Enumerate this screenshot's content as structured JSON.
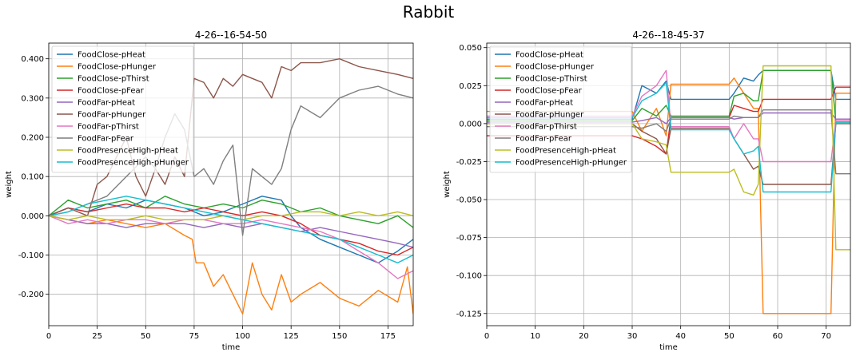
{
  "figure_title": "Rabbit",
  "colors": {
    "FoodClose-pHeat": "#1f77b4",
    "FoodClose-pHunger": "#ff7f0e",
    "FoodClose-pThirst": "#2ca02c",
    "FoodClose-pFear": "#d62728",
    "FoodFar-pHeat": "#9467bd",
    "FoodFar-pHunger": "#8c564b",
    "FoodFar-pThirst": "#e377c2",
    "FoodFar-pFear": "#7f7f7f",
    "FoodPresenceHigh-pHeat": "#bcbd22",
    "FoodPresenceHigh-pHunger": "#17becf"
  },
  "chart_data": [
    {
      "type": "line",
      "title": "4-26--16-54-50",
      "xlabel": "time",
      "ylabel": "weight",
      "xlim": [
        0,
        188
      ],
      "ylim": [
        -0.28,
        0.44
      ],
      "xticks": [
        0,
        25,
        50,
        75,
        100,
        125,
        150,
        175
      ],
      "xtick_labels": [
        "0",
        "25",
        "50",
        "75",
        "100",
        "125",
        "150",
        "175"
      ],
      "yticks": [
        -0.2,
        -0.1,
        0.0,
        0.1,
        0.2,
        0.3,
        0.4
      ],
      "ytick_labels": [
        "-0.200",
        "-0.100",
        "0.000",
        "0.100",
        "0.200",
        "0.300",
        "0.400"
      ],
      "grid": true,
      "legend": "upper-left",
      "series": [
        {
          "name": "FoodClose-pHeat",
          "x": [
            0,
            10,
            20,
            30,
            40,
            50,
            60,
            70,
            75,
            80,
            90,
            100,
            110,
            120,
            125,
            130,
            140,
            150,
            160,
            170,
            180,
            188
          ],
          "values": [
            0,
            0.02,
            0.01,
            0.03,
            0.02,
            0.04,
            0.03,
            0.02,
            0.01,
            0.0,
            0.01,
            0.03,
            0.05,
            0.04,
            0.0,
            -0.03,
            -0.06,
            -0.08,
            -0.1,
            -0.12,
            -0.09,
            -0.06
          ]
        },
        {
          "name": "FoodClose-pHunger",
          "x": [
            0,
            10,
            20,
            30,
            40,
            50,
            60,
            70,
            74,
            76,
            80,
            85,
            90,
            95,
            100,
            105,
            110,
            115,
            120,
            125,
            130,
            140,
            150,
            160,
            170,
            180,
            185,
            188
          ],
          "values": [
            0,
            -0.01,
            -0.02,
            -0.01,
            -0.02,
            -0.03,
            -0.02,
            -0.05,
            -0.06,
            -0.12,
            -0.12,
            -0.18,
            -0.15,
            -0.2,
            -0.25,
            -0.12,
            -0.2,
            -0.24,
            -0.15,
            -0.22,
            -0.2,
            -0.17,
            -0.21,
            -0.23,
            -0.19,
            -0.22,
            -0.13,
            -0.25
          ]
        },
        {
          "name": "FoodClose-pThirst",
          "x": [
            0,
            10,
            20,
            30,
            40,
            50,
            60,
            70,
            80,
            90,
            100,
            110,
            120,
            130,
            140,
            150,
            160,
            170,
            180,
            188
          ],
          "values": [
            0,
            0.04,
            0.02,
            0.03,
            0.04,
            0.02,
            0.05,
            0.03,
            0.02,
            0.03,
            0.02,
            0.04,
            0.03,
            0.01,
            0.02,
            0.0,
            -0.01,
            -0.02,
            0.0,
            -0.03
          ]
        },
        {
          "name": "FoodClose-pFear",
          "x": [
            0,
            10,
            20,
            30,
            40,
            50,
            60,
            70,
            80,
            90,
            100,
            110,
            120,
            130,
            140,
            150,
            160,
            170,
            180,
            188
          ],
          "values": [
            0,
            0.02,
            0.01,
            0.02,
            0.03,
            0.02,
            0.02,
            0.01,
            0.02,
            0.01,
            0.0,
            0.01,
            0.0,
            -0.02,
            -0.05,
            -0.06,
            -0.07,
            -0.09,
            -0.1,
            -0.08
          ]
        },
        {
          "name": "FoodFar-pHeat",
          "x": [
            0,
            10,
            20,
            30,
            40,
            50,
            60,
            70,
            80,
            90,
            100,
            110,
            120,
            130,
            140,
            150,
            160,
            170,
            180,
            188
          ],
          "values": [
            0,
            -0.01,
            -0.02,
            -0.02,
            -0.03,
            -0.02,
            -0.02,
            -0.02,
            -0.03,
            -0.02,
            -0.03,
            -0.02,
            -0.03,
            -0.04,
            -0.03,
            -0.04,
            -0.05,
            -0.06,
            -0.07,
            -0.08
          ]
        },
        {
          "name": "FoodFar-pHunger",
          "x": [
            0,
            10,
            20,
            25,
            30,
            35,
            40,
            45,
            50,
            55,
            60,
            65,
            70,
            75,
            80,
            85,
            90,
            95,
            100,
            105,
            110,
            115,
            120,
            125,
            130,
            140,
            150,
            160,
            170,
            180,
            188
          ],
          "values": [
            0,
            0.02,
            0.0,
            0.08,
            0.1,
            0.15,
            0.2,
            0.1,
            0.05,
            0.12,
            0.08,
            0.15,
            0.1,
            0.35,
            0.34,
            0.3,
            0.35,
            0.33,
            0.36,
            0.35,
            0.34,
            0.3,
            0.38,
            0.37,
            0.39,
            0.39,
            0.4,
            0.38,
            0.37,
            0.36,
            0.35
          ]
        },
        {
          "name": "FoodFar-pThirst",
          "x": [
            0,
            10,
            20,
            30,
            40,
            50,
            60,
            70,
            80,
            90,
            100,
            110,
            120,
            130,
            140,
            150,
            160,
            170,
            180,
            188
          ],
          "values": [
            0,
            -0.02,
            -0.01,
            -0.02,
            -0.01,
            -0.01,
            -0.02,
            -0.01,
            -0.01,
            -0.02,
            -0.02,
            -0.01,
            -0.02,
            -0.03,
            -0.04,
            -0.06,
            -0.09,
            -0.12,
            -0.16,
            -0.14
          ]
        },
        {
          "name": "FoodFar-pFear",
          "x": [
            0,
            10,
            20,
            30,
            40,
            50,
            55,
            60,
            65,
            70,
            75,
            80,
            85,
            90,
            95,
            100,
            105,
            110,
            115,
            120,
            125,
            130,
            140,
            150,
            160,
            170,
            180,
            188
          ],
          "values": [
            0,
            0.01,
            0.03,
            0.05,
            0.1,
            0.15,
            0.12,
            0.2,
            0.26,
            0.22,
            0.1,
            0.12,
            0.08,
            0.14,
            0.18,
            -0.05,
            0.12,
            0.1,
            0.08,
            0.12,
            0.22,
            0.28,
            0.25,
            0.3,
            0.32,
            0.33,
            0.31,
            0.3
          ]
        },
        {
          "name": "FoodPresenceHigh-pHeat",
          "x": [
            0,
            10,
            20,
            30,
            40,
            50,
            60,
            70,
            80,
            90,
            100,
            110,
            120,
            130,
            140,
            150,
            160,
            170,
            180,
            188
          ],
          "values": [
            0,
            -0.01,
            0.0,
            -0.01,
            -0.01,
            0.0,
            -0.01,
            -0.01,
            -0.01,
            0.0,
            -0.01,
            0.0,
            0.0,
            0.01,
            0.01,
            0.0,
            0.01,
            0.0,
            0.01,
            0.0
          ]
        },
        {
          "name": "FoodPresenceHigh-pHunger",
          "x": [
            0,
            10,
            20,
            30,
            40,
            50,
            60,
            70,
            80,
            90,
            100,
            110,
            120,
            130,
            140,
            150,
            160,
            170,
            180,
            188
          ],
          "values": [
            0,
            0.01,
            0.03,
            0.04,
            0.05,
            0.04,
            0.03,
            0.02,
            0.01,
            0.0,
            -0.01,
            -0.02,
            -0.03,
            -0.04,
            -0.05,
            -0.06,
            -0.08,
            -0.1,
            -0.12,
            -0.1
          ]
        }
      ]
    },
    {
      "type": "line",
      "title": "4-26--18-45-37",
      "xlabel": "time",
      "ylabel": "weight",
      "xlim": [
        0,
        75
      ],
      "ylim": [
        -0.133,
        0.053
      ],
      "xticks": [
        0,
        10,
        20,
        30,
        40,
        50,
        60,
        70
      ],
      "xtick_labels": [
        "0",
        "10",
        "20",
        "30",
        "40",
        "50",
        "60",
        "70"
      ],
      "yticks": [
        -0.125,
        -0.1,
        -0.075,
        -0.05,
        -0.025,
        0.0,
        0.025,
        0.05
      ],
      "ytick_labels": [
        "-0.125",
        "-0.100",
        "-0.075",
        "-0.050",
        "-0.025",
        "0.000",
        "0.025",
        "0.050"
      ],
      "grid": true,
      "legend": "upper-left",
      "series": [
        {
          "name": "FoodClose-pHeat",
          "x": [
            0,
            30,
            32,
            35,
            37,
            38,
            50,
            51,
            53,
            55,
            56,
            57,
            71,
            72,
            75
          ],
          "values": [
            0.003,
            0.003,
            0.025,
            0.02,
            0.028,
            0.016,
            0.016,
            0.02,
            0.03,
            0.028,
            0.032,
            0.035,
            0.035,
            0.016,
            0.016
          ]
        },
        {
          "name": "FoodClose-pHunger",
          "x": [
            0,
            30,
            32,
            35,
            37,
            38,
            50,
            51,
            53,
            55,
            56,
            57,
            71,
            72,
            75
          ],
          "values": [
            0.008,
            0.008,
            -0.005,
            0.01,
            -0.008,
            0.026,
            0.026,
            0.03,
            0.02,
            0.01,
            0.01,
            -0.125,
            -0.125,
            0.02,
            0.02
          ]
        },
        {
          "name": "FoodClose-pThirst",
          "x": [
            0,
            30,
            32,
            35,
            37,
            38,
            50,
            51,
            53,
            55,
            56,
            57,
            71,
            72,
            75
          ],
          "values": [
            0.002,
            0.002,
            0.01,
            0.005,
            0.012,
            0.005,
            0.005,
            0.018,
            0.02,
            0.015,
            0.015,
            0.035,
            0.035,
            0.001,
            0.001
          ]
        },
        {
          "name": "FoodClose-pFear",
          "x": [
            0,
            30,
            32,
            35,
            37,
            38,
            50,
            51,
            53,
            55,
            56,
            57,
            71,
            72,
            75
          ],
          "values": [
            -0.008,
            -0.008,
            -0.01,
            -0.015,
            -0.02,
            0.004,
            0.004,
            0.012,
            0.01,
            0.008,
            0.008,
            0.016,
            0.016,
            0.024,
            0.024
          ]
        },
        {
          "name": "FoodFar-pHeat",
          "x": [
            0,
            30,
            32,
            35,
            37,
            38,
            50,
            51,
            53,
            55,
            56,
            57,
            71,
            72,
            75
          ],
          "values": [
            0.001,
            0.001,
            0.002,
            0.004,
            0.0,
            0.004,
            0.004,
            0.003,
            0.004,
            0.004,
            0.004,
            0.007,
            0.007,
            0.003,
            0.003
          ]
        },
        {
          "name": "FoodFar-pHunger",
          "x": [
            0,
            30,
            32,
            35,
            37,
            38,
            50,
            51,
            53,
            55,
            56,
            57,
            71,
            72,
            75
          ],
          "values": [
            0.0,
            0.0,
            -0.005,
            -0.01,
            -0.02,
            -0.003,
            -0.003,
            -0.01,
            -0.02,
            -0.03,
            -0.028,
            -0.04,
            -0.04,
            0.0,
            0.0
          ]
        },
        {
          "name": "FoodFar-pThirst",
          "x": [
            0,
            30,
            32,
            35,
            37,
            38,
            50,
            51,
            53,
            55,
            56,
            57,
            71,
            72,
            75
          ],
          "values": [
            0.005,
            0.005,
            0.018,
            0.025,
            0.035,
            -0.002,
            -0.002,
            -0.01,
            0.0,
            -0.01,
            -0.01,
            -0.025,
            -0.025,
            0.002,
            0.002
          ]
        },
        {
          "name": "FoodFar-pFear",
          "x": [
            0,
            30,
            32,
            35,
            37,
            38,
            50,
            51,
            53,
            55,
            56,
            57,
            71,
            72,
            75
          ],
          "values": [
            -0.002,
            -0.002,
            -0.003,
            0.0,
            -0.005,
            0.003,
            0.003,
            0.005,
            0.004,
            0.004,
            0.004,
            0.009,
            0.009,
            -0.033,
            -0.033
          ]
        },
        {
          "name": "FoodPresenceHigh-pHeat",
          "x": [
            0,
            30,
            32,
            35,
            37,
            38,
            50,
            51,
            53,
            55,
            56,
            57,
            71,
            72,
            75
          ],
          "values": [
            0.0,
            0.0,
            -0.01,
            -0.012,
            -0.014,
            -0.032,
            -0.032,
            -0.03,
            -0.045,
            -0.047,
            -0.04,
            0.038,
            0.038,
            -0.083,
            -0.083
          ]
        },
        {
          "name": "FoodPresenceHigh-pHunger",
          "x": [
            0,
            30,
            32,
            35,
            37,
            38,
            50,
            51,
            53,
            55,
            56,
            57,
            71,
            72,
            75
          ],
          "values": [
            0.004,
            0.004,
            0.015,
            0.02,
            0.027,
            -0.004,
            -0.004,
            -0.01,
            -0.02,
            -0.018,
            -0.015,
            -0.045,
            -0.045,
            0.001,
            0.001
          ]
        }
      ]
    }
  ]
}
